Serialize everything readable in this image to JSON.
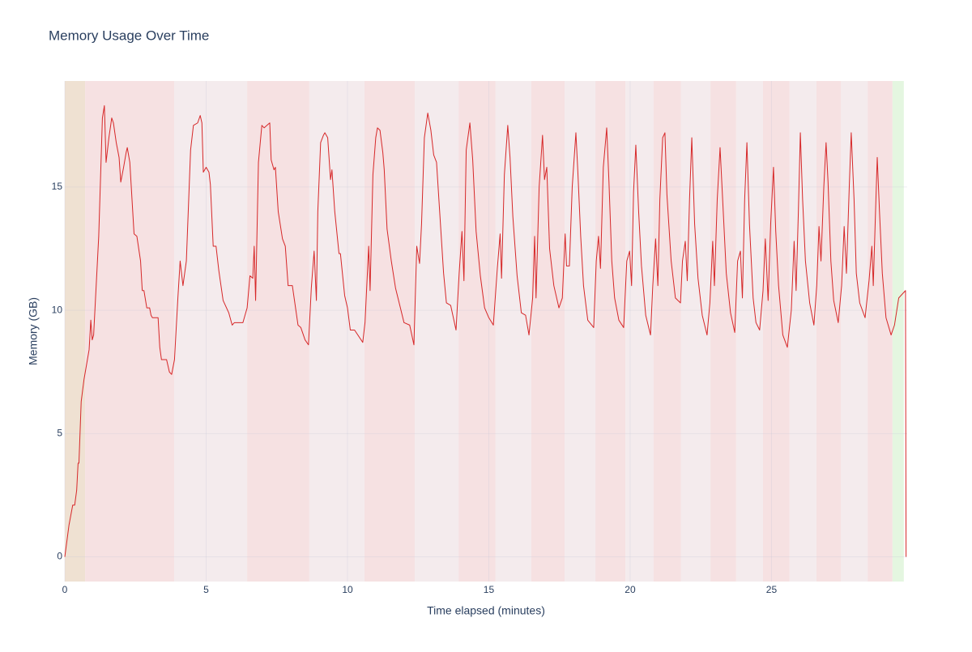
{
  "chart_data": {
    "type": "line",
    "title": "Memory Usage Over Time",
    "x_label": "Time elapsed (minutes)",
    "y_label": "Memory (GB)",
    "xlim": [
      0,
      29.8
    ],
    "ylim": [
      -1,
      19.3
    ],
    "xticks": [
      0,
      5,
      10,
      15,
      20,
      25
    ],
    "yticks": [
      0,
      5,
      10,
      15
    ],
    "grid": true,
    "bands": [
      {
        "x0": 0,
        "x1": 0.72,
        "color": "#efe1d2"
      },
      {
        "x0": 0.72,
        "x1": 3.87,
        "color": "#f6e1e2"
      },
      {
        "x0": 3.87,
        "x1": 6.45,
        "color": "#f4ebed"
      },
      {
        "x0": 6.45,
        "x1": 8.65,
        "color": "#f6e1e2"
      },
      {
        "x0": 8.65,
        "x1": 10.6,
        "color": "#f4ebed"
      },
      {
        "x0": 10.6,
        "x1": 12.38,
        "color": "#f6e1e2"
      },
      {
        "x0": 12.38,
        "x1": 13.93,
        "color": "#f4ebed"
      },
      {
        "x0": 13.93,
        "x1": 15.24,
        "color": "#f6e1e2"
      },
      {
        "x0": 15.24,
        "x1": 16.5,
        "color": "#f4ebed"
      },
      {
        "x0": 16.5,
        "x1": 17.68,
        "color": "#f6e1e2"
      },
      {
        "x0": 17.68,
        "x1": 18.77,
        "color": "#f4ebed"
      },
      {
        "x0": 18.77,
        "x1": 19.83,
        "color": "#f6e1e2"
      },
      {
        "x0": 19.83,
        "x1": 20.83,
        "color": "#f4ebed"
      },
      {
        "x0": 20.83,
        "x1": 21.8,
        "color": "#f6e1e2"
      },
      {
        "x0": 21.8,
        "x1": 22.84,
        "color": "#f4ebed"
      },
      {
        "x0": 22.84,
        "x1": 23.75,
        "color": "#f6e1e2"
      },
      {
        "x0": 23.75,
        "x1": 24.7,
        "color": "#f4ebed"
      },
      {
        "x0": 24.7,
        "x1": 25.64,
        "color": "#f6e1e2"
      },
      {
        "x0": 25.64,
        "x1": 26.59,
        "color": "#f4ebed"
      },
      {
        "x0": 26.59,
        "x1": 27.45,
        "color": "#f6e1e2"
      },
      {
        "x0": 27.45,
        "x1": 28.4,
        "color": "#f4ebed"
      },
      {
        "x0": 28.4,
        "x1": 29.28,
        "color": "#f6e1e2"
      },
      {
        "x0": 29.28,
        "x1": 29.68,
        "color": "#e4f6e0"
      }
    ],
    "series": [
      {
        "color": "#d62728",
        "x": [
          0,
          0.15,
          0.28,
          0.35,
          0.42,
          0.47,
          0.5,
          0.58,
          0.68,
          0.8,
          0.86,
          0.92,
          0.97,
          1.02,
          1.2,
          1.33,
          1.4,
          1.46,
          1.56,
          1.66,
          1.72,
          1.82,
          1.92,
          1.98,
          2.08,
          2.17,
          2.21,
          2.3,
          2.45,
          2.55,
          2.68,
          2.74,
          2.8,
          2.9,
          3.0,
          3.05,
          3.1,
          3.3,
          3.36,
          3.42,
          3.6,
          3.7,
          3.78,
          3.88,
          4.0,
          4.08,
          4.18,
          4.3,
          4.45,
          4.55,
          4.7,
          4.79,
          4.85,
          4.9,
          5.0,
          5.1,
          5.15,
          5.25,
          5.35,
          5.45,
          5.6,
          5.8,
          5.92,
          6.0,
          6.3,
          6.45,
          6.55,
          6.65,
          6.7,
          6.75,
          6.85,
          6.97,
          7.05,
          7.15,
          7.25,
          7.3,
          7.4,
          7.45,
          7.55,
          7.7,
          7.8,
          7.9,
          8.05,
          8.25,
          8.35,
          8.5,
          8.62,
          8.72,
          8.82,
          8.9,
          8.95,
          9.05,
          9.15,
          9.2,
          9.3,
          9.4,
          9.45,
          9.55,
          9.7,
          9.75,
          9.9,
          10.0,
          10.1,
          10.25,
          10.54,
          10.62,
          10.75,
          10.8,
          10.9,
          11.0,
          11.06,
          11.15,
          11.25,
          11.3,
          11.4,
          11.55,
          11.7,
          11.85,
          12.0,
          12.2,
          12.35,
          12.45,
          12.55,
          12.62,
          12.72,
          12.84,
          12.95,
          13.05,
          13.15,
          13.3,
          13.4,
          13.5,
          13.65,
          13.84,
          13.95,
          14.05,
          14.12,
          14.2,
          14.33,
          14.43,
          14.55,
          14.7,
          14.85,
          15.0,
          15.16,
          15.3,
          15.4,
          15.45,
          15.55,
          15.67,
          15.75,
          15.85,
          16.0,
          16.15,
          16.3,
          16.42,
          16.55,
          16.62,
          16.67,
          16.78,
          16.9,
          16.97,
          17.05,
          17.15,
          17.3,
          17.48,
          17.6,
          17.7,
          17.75,
          17.85,
          17.95,
          18.08,
          18.15,
          18.25,
          18.35,
          18.5,
          18.71,
          18.8,
          18.88,
          18.95,
          19.05,
          19.17,
          19.25,
          19.35,
          19.45,
          19.6,
          19.77,
          19.88,
          19.98,
          20.05,
          20.12,
          20.2,
          20.3,
          20.4,
          20.55,
          20.72,
          20.8,
          20.9,
          20.98,
          21.05,
          21.15,
          21.23,
          21.3,
          21.45,
          21.6,
          21.78,
          21.85,
          21.95,
          22.02,
          22.1,
          22.18,
          22.28,
          22.4,
          22.55,
          22.72,
          22.82,
          22.92,
          22.98,
          23.08,
          23.18,
          23.28,
          23.4,
          23.55,
          23.7,
          23.8,
          23.9,
          23.97,
          24.05,
          24.13,
          24.22,
          24.35,
          24.45,
          24.58,
          24.7,
          24.78,
          24.88,
          24.97,
          25.07,
          25.15,
          25.25,
          25.4,
          25.56,
          25.7,
          25.8,
          25.87,
          25.95,
          26.02,
          26.1,
          26.2,
          26.35,
          26.5,
          26.6,
          26.68,
          26.75,
          26.85,
          26.93,
          27.0,
          27.1,
          27.2,
          27.36,
          27.48,
          27.57,
          27.65,
          27.75,
          27.82,
          27.92,
          28.0,
          28.12,
          28.31,
          28.45,
          28.55,
          28.6,
          28.68,
          28.74,
          28.82,
          28.92,
          29.05,
          29.23,
          29.35,
          29.5,
          29.74,
          29.76
        ],
        "values": [
          0,
          1.3,
          2.1,
          2.1,
          2.7,
          3.8,
          3.8,
          6.3,
          7.2,
          8.0,
          8.4,
          9.6,
          8.8,
          9.0,
          13.0,
          17.8,
          18.3,
          16.0,
          17.0,
          17.8,
          17.6,
          16.8,
          16.2,
          15.2,
          15.8,
          16.4,
          16.6,
          16.0,
          13.1,
          13.0,
          12.0,
          10.8,
          10.8,
          10.1,
          10.1,
          9.8,
          9.7,
          9.7,
          8.5,
          8.0,
          8.0,
          7.5,
          7.4,
          8.0,
          10.5,
          12.0,
          11.0,
          12.0,
          16.5,
          17.5,
          17.6,
          17.9,
          17.6,
          15.6,
          15.8,
          15.6,
          15.1,
          12.6,
          12.6,
          11.6,
          10.4,
          9.9,
          9.4,
          9.5,
          9.5,
          10.1,
          11.4,
          11.3,
          12.6,
          10.4,
          16.0,
          17.5,
          17.4,
          17.5,
          17.6,
          16.1,
          15.7,
          15.8,
          14.0,
          12.9,
          12.6,
          11.0,
          11.0,
          9.4,
          9.3,
          8.8,
          8.6,
          10.9,
          12.4,
          10.4,
          14.0,
          16.8,
          17.1,
          17.2,
          17.0,
          15.3,
          15.7,
          14.0,
          12.3,
          12.3,
          10.6,
          10.1,
          9.2,
          9.2,
          8.7,
          9.5,
          12.6,
          10.8,
          15.5,
          17.0,
          17.4,
          17.3,
          16.4,
          15.7,
          13.3,
          12.0,
          10.9,
          10.2,
          9.5,
          9.4,
          8.6,
          12.6,
          11.9,
          13.5,
          17.0,
          18.0,
          17.3,
          16.3,
          16.0,
          13.3,
          11.5,
          10.3,
          10.2,
          9.2,
          11.5,
          13.2,
          11.2,
          16.5,
          17.6,
          16.1,
          13.2,
          11.4,
          10.1,
          9.7,
          9.4,
          11.7,
          13.1,
          11.3,
          15.5,
          17.5,
          16.2,
          13.8,
          11.4,
          9.9,
          9.8,
          9.0,
          10.5,
          13.0,
          10.5,
          15.0,
          17.1,
          15.3,
          15.8,
          12.5,
          11.0,
          10.1,
          10.5,
          13.1,
          11.8,
          11.8,
          15.0,
          17.2,
          15.6,
          13.0,
          11.0,
          9.6,
          9.3,
          12.0,
          13.0,
          11.7,
          15.8,
          17.4,
          15.2,
          12.0,
          10.5,
          9.6,
          9.3,
          12.0,
          12.4,
          11.0,
          14.8,
          16.7,
          14.0,
          11.8,
          9.8,
          9.0,
          11.0,
          12.9,
          11.0,
          14.5,
          17.0,
          17.2,
          14.7,
          12.0,
          10.5,
          10.3,
          12.0,
          12.8,
          11.2,
          14.5,
          17.0,
          13.5,
          11.3,
          9.8,
          9.0,
          10.3,
          12.8,
          11.0,
          14.5,
          16.6,
          14.3,
          11.5,
          9.9,
          9.1,
          12.0,
          12.4,
          10.5,
          14.5,
          16.8,
          13.5,
          10.5,
          9.5,
          9.2,
          10.8,
          12.9,
          10.4,
          13.5,
          15.8,
          13.2,
          11.0,
          9.0,
          8.5,
          10.0,
          12.8,
          10.8,
          14.0,
          17.2,
          14.5,
          12.0,
          10.3,
          9.4,
          11.0,
          13.4,
          12.0,
          15.0,
          16.8,
          15.2,
          12.0,
          10.4,
          9.5,
          11.0,
          13.4,
          11.5,
          15.0,
          17.2,
          14.5,
          11.5,
          10.3,
          9.7,
          11.2,
          12.6,
          11.0,
          14.0,
          16.2,
          14.0,
          11.5,
          9.7,
          9.0,
          9.4,
          10.5,
          10.8,
          0
        ]
      }
    ]
  }
}
